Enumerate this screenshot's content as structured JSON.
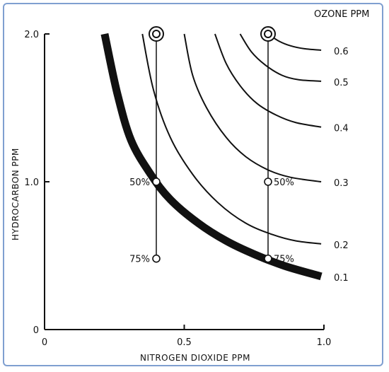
{
  "chart_data": {
    "type": "line",
    "xlabel": "NITROGEN DIOXIDE PPM",
    "ylabel": "HYDROCARBON PPM",
    "xlim": [
      0,
      1.0
    ],
    "ylim": [
      0,
      2.0
    ],
    "x_ticks": [
      "0",
      "0.5",
      "1.0"
    ],
    "y_ticks": [
      "0",
      "1.0",
      "2.0"
    ],
    "grid": false,
    "legend_title": "OZONE PPM",
    "series": [
      {
        "name": "0.1",
        "emphasis": true,
        "points": [
          [
            0.215,
            2.0
          ],
          [
            0.26,
            1.6
          ],
          [
            0.31,
            1.28
          ],
          [
            0.38,
            1.05
          ],
          [
            0.45,
            0.88
          ],
          [
            0.55,
            0.72
          ],
          [
            0.65,
            0.6
          ],
          [
            0.75,
            0.51
          ],
          [
            0.86,
            0.43
          ],
          [
            0.99,
            0.36
          ]
        ]
      },
      {
        "name": "0.2",
        "points": [
          [
            0.35,
            2.0
          ],
          [
            0.39,
            1.62
          ],
          [
            0.45,
            1.3
          ],
          [
            0.53,
            1.05
          ],
          [
            0.62,
            0.86
          ],
          [
            0.72,
            0.72
          ],
          [
            0.82,
            0.64
          ],
          [
            0.9,
            0.6
          ],
          [
            0.99,
            0.58
          ]
        ]
      },
      {
        "name": "0.3",
        "points": [
          [
            0.5,
            2.0
          ],
          [
            0.53,
            1.72
          ],
          [
            0.58,
            1.5
          ],
          [
            0.65,
            1.3
          ],
          [
            0.72,
            1.17
          ],
          [
            0.8,
            1.08
          ],
          [
            0.88,
            1.03
          ],
          [
            0.99,
            1.0
          ]
        ]
      },
      {
        "name": "0.4",
        "points": [
          [
            0.61,
            2.0
          ],
          [
            0.65,
            1.8
          ],
          [
            0.7,
            1.65
          ],
          [
            0.76,
            1.53
          ],
          [
            0.83,
            1.45
          ],
          [
            0.9,
            1.4
          ],
          [
            0.99,
            1.37
          ]
        ]
      },
      {
        "name": "0.5",
        "points": [
          [
            0.7,
            2.0
          ],
          [
            0.74,
            1.88
          ],
          [
            0.79,
            1.79
          ],
          [
            0.85,
            1.72
          ],
          [
            0.91,
            1.69
          ],
          [
            0.99,
            1.68
          ]
        ]
      },
      {
        "name": "0.6",
        "points": [
          [
            0.8,
            2.0
          ],
          [
            0.84,
            1.95
          ],
          [
            0.88,
            1.92
          ],
          [
            0.93,
            1.9
          ],
          [
            0.99,
            1.89
          ]
        ]
      }
    ],
    "verticals": [
      {
        "x": 0.4,
        "y_top": 2.0,
        "y_bottom": 0.48
      },
      {
        "x": 0.8,
        "y_top": 2.0,
        "y_bottom": 0.48
      }
    ],
    "markers": [
      {
        "x": 0.4,
        "y": 2.0,
        "style": "double"
      },
      {
        "x": 0.8,
        "y": 2.0,
        "style": "double"
      },
      {
        "x": 0.4,
        "y": 1.0,
        "label": "50%",
        "label_side": "left"
      },
      {
        "x": 0.4,
        "y": 0.48,
        "label": "75%",
        "label_side": "left"
      },
      {
        "x": 0.8,
        "y": 1.0,
        "label": "50%",
        "label_side": "right"
      },
      {
        "x": 0.8,
        "y": 0.48,
        "label": "75%",
        "label_side": "right"
      }
    ]
  }
}
